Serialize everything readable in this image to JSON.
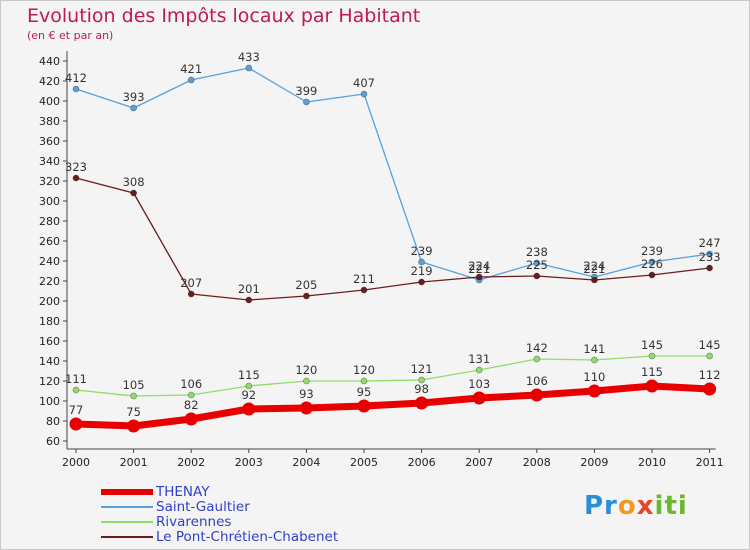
{
  "chart_data": {
    "type": "line",
    "title": "Evolution des Impôts locaux par Habitant",
    "subtitle": "(en € et par an)",
    "x": [
      "2000",
      "2001",
      "2002",
      "2003",
      "2004",
      "2005",
      "2006",
      "2007",
      "2008",
      "2009",
      "2010",
      "2011"
    ],
    "ylim": [
      60,
      440
    ],
    "yticks": [
      60,
      80,
      100,
      120,
      140,
      160,
      180,
      200,
      220,
      240,
      260,
      280,
      300,
      320,
      340,
      360,
      380,
      400,
      420,
      440
    ],
    "grid": false,
    "legend_position": "bottom-left",
    "series": [
      {
        "name": "THENAY",
        "color": "#e80000",
        "values": [
          77,
          75,
          82,
          92,
          93,
          95,
          98,
          103,
          106,
          110,
          115,
          112
        ]
      },
      {
        "name": "Saint-Gaultier",
        "color": "#5aa0d8",
        "values": [
          412,
          393,
          421,
          433,
          399,
          407,
          239,
          221,
          238,
          224,
          239,
          247
        ]
      },
      {
        "name": "Rivarennes",
        "color": "#90dc6a",
        "values": [
          111,
          105,
          106,
          115,
          120,
          120,
          121,
          131,
          142,
          141,
          145,
          145
        ]
      },
      {
        "name": "Le Pont-Chrétien-Chabenet",
        "color": "#6b1c1c",
        "values": [
          323,
          308,
          207,
          201,
          205,
          211,
          219,
          224,
          225,
          221,
          226,
          233
        ]
      }
    ]
  },
  "logo": {
    "part1": "Pr",
    "part2": "o",
    "part3": "x",
    "part4": "iti"
  }
}
